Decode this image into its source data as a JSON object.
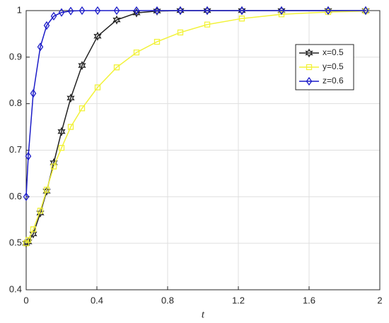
{
  "chart_data": {
    "type": "line",
    "x_label": "t",
    "x": [
      0,
      0.012,
      0.04,
      0.08,
      0.116,
      0.156,
      0.2,
      0.252,
      0.316,
      0.404,
      0.512,
      0.624,
      0.74,
      0.872,
      1.024,
      1.22,
      1.444,
      1.708,
      1.92
    ],
    "series": [
      {
        "name": "x=0.5",
        "color": "#222222",
        "marker": "hexagram",
        "values": [
          0.5,
          0.503,
          0.52,
          0.565,
          0.612,
          0.673,
          0.74,
          0.812,
          0.882,
          0.945,
          0.98,
          0.995,
          0.999,
          1,
          1,
          1,
          1,
          1,
          1
        ]
      },
      {
        "name": "y=0.5",
        "color": "#f2f23a",
        "marker": "square",
        "values": [
          0.5,
          0.507,
          0.53,
          0.57,
          0.615,
          0.665,
          0.705,
          0.75,
          0.79,
          0.835,
          0.878,
          0.91,
          0.933,
          0.953,
          0.97,
          0.983,
          0.992,
          0.997,
          0.999
        ]
      },
      {
        "name": "z=0.6",
        "color": "#1c1cc8",
        "marker": "diamond",
        "values": [
          0.6,
          0.687,
          0.822,
          0.922,
          0.968,
          0.988,
          0.996,
          0.999,
          1,
          1,
          1,
          1,
          1,
          1,
          1,
          1,
          1,
          1,
          1
        ]
      }
    ],
    "xlim": [
      0,
      2
    ],
    "xticks": [
      0,
      0.4,
      0.8,
      1.2,
      1.6,
      2
    ],
    "ylim": [
      0.4,
      1
    ],
    "yticks": [
      0.4,
      0.5,
      0.6,
      0.7,
      0.8,
      0.9,
      1
    ],
    "grid": true,
    "legend": "upper-right"
  }
}
